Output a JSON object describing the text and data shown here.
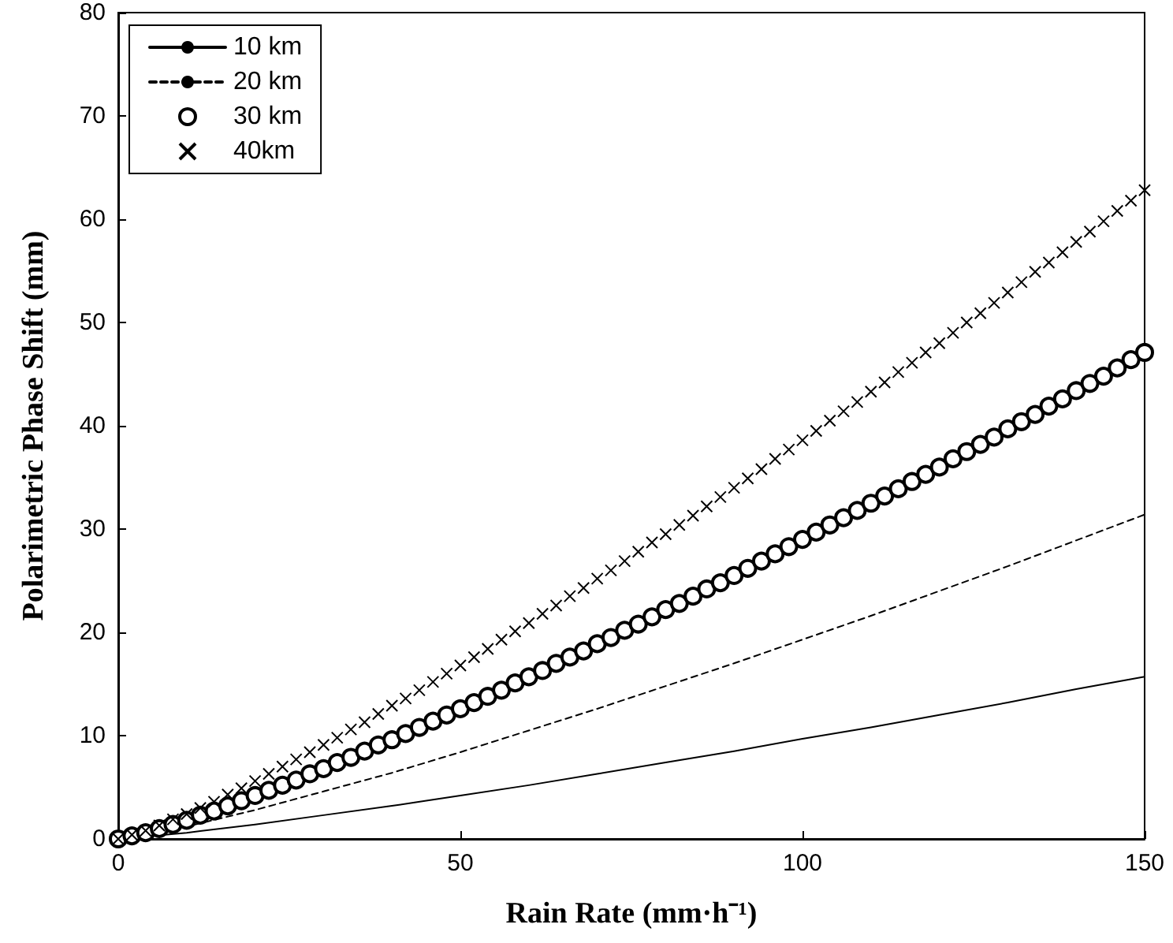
{
  "chart_data": {
    "type": "line",
    "xlabel": "Rain Rate (mm·h⁻¹)",
    "ylabel": "Polarimetric Phase Shift (mm)",
    "xlim": [
      0,
      150
    ],
    "xticks": [
      0,
      50,
      100,
      150
    ],
    "ylim": [
      0,
      80
    ],
    "yticks": [
      0,
      10,
      20,
      30,
      40,
      50,
      60,
      70,
      80
    ],
    "grid": false,
    "legend": "top left",
    "series": [
      {
        "name": "10 km",
        "line_style": "solid",
        "marker": "none",
        "color": "#000000",
        "x": [
          0,
          10,
          20,
          30,
          40,
          50,
          60,
          70,
          80,
          90,
          100,
          110,
          120,
          130,
          140,
          150
        ],
        "values": [
          0,
          0.6,
          1.4,
          2.3,
          3.2,
          4.2,
          5.2,
          6.3,
          7.4,
          8.5,
          9.7,
          10.8,
          12.0,
          13.2,
          14.5,
          15.7
        ]
      },
      {
        "name": "20 km",
        "line_style": "dashed",
        "marker": "none",
        "color": "#000000",
        "x": [
          0,
          10,
          20,
          30,
          40,
          50,
          60,
          70,
          80,
          90,
          100,
          110,
          120,
          130,
          140,
          150
        ],
        "values": [
          0,
          1.2,
          2.8,
          4.6,
          6.4,
          8.4,
          10.5,
          12.6,
          14.8,
          17.0,
          19.3,
          21.6,
          24.0,
          26.4,
          28.9,
          31.4
        ]
      },
      {
        "name": "30 km",
        "type": "scatter",
        "marker": "circle",
        "color": "#000000",
        "x": [
          0,
          2,
          4,
          6,
          8,
          10,
          12,
          14,
          16,
          18,
          20,
          22,
          24,
          26,
          28,
          30,
          32,
          34,
          36,
          38,
          40,
          42,
          44,
          46,
          48,
          50,
          52,
          54,
          56,
          58,
          60,
          62,
          64,
          66,
          68,
          70,
          72,
          74,
          76,
          78,
          80,
          82,
          84,
          86,
          88,
          90,
          92,
          94,
          96,
          98,
          100,
          102,
          104,
          106,
          108,
          110,
          112,
          114,
          116,
          118,
          120,
          122,
          124,
          126,
          128,
          130,
          132,
          134,
          136,
          138,
          140,
          142,
          144,
          146,
          148,
          150
        ],
        "values": [
          0,
          0.3,
          0.6,
          1.0,
          1.4,
          1.8,
          2.3,
          2.7,
          3.2,
          3.7,
          4.2,
          4.7,
          5.2,
          5.7,
          6.3,
          6.8,
          7.4,
          7.9,
          8.5,
          9.1,
          9.6,
          10.2,
          10.8,
          11.4,
          12.0,
          12.6,
          13.2,
          13.8,
          14.4,
          15.1,
          15.7,
          16.3,
          17.0,
          17.6,
          18.2,
          18.9,
          19.5,
          20.2,
          20.8,
          21.5,
          22.2,
          22.8,
          23.5,
          24.2,
          24.8,
          25.5,
          26.2,
          26.9,
          27.6,
          28.3,
          29.0,
          29.7,
          30.4,
          31.1,
          31.8,
          32.5,
          33.2,
          33.9,
          34.6,
          35.3,
          36.0,
          36.8,
          37.5,
          38.2,
          38.9,
          39.7,
          40.4,
          41.1,
          41.9,
          42.6,
          43.4,
          44.1,
          44.8,
          45.6,
          46.4,
          47.1
        ]
      },
      {
        "name": "40km",
        "type": "scatter",
        "marker": "cross",
        "color": "#000000",
        "x": [
          0,
          2,
          4,
          6,
          8,
          10,
          12,
          14,
          16,
          18,
          20,
          22,
          24,
          26,
          28,
          30,
          32,
          34,
          36,
          38,
          40,
          42,
          44,
          46,
          48,
          50,
          52,
          54,
          56,
          58,
          60,
          62,
          64,
          66,
          68,
          70,
          72,
          74,
          76,
          78,
          80,
          82,
          84,
          86,
          88,
          90,
          92,
          94,
          96,
          98,
          100,
          102,
          104,
          106,
          108,
          110,
          112,
          114,
          116,
          118,
          120,
          122,
          124,
          126,
          128,
          130,
          132,
          134,
          136,
          138,
          140,
          142,
          144,
          146,
          148,
          150
        ],
        "values": [
          0,
          0.4,
          0.8,
          1.3,
          1.9,
          2.4,
          3.0,
          3.6,
          4.3,
          4.9,
          5.6,
          6.3,
          7.0,
          7.7,
          8.4,
          9.1,
          9.8,
          10.6,
          11.3,
          12.1,
          12.9,
          13.6,
          14.4,
          15.2,
          16.0,
          16.8,
          17.6,
          18.4,
          19.3,
          20.1,
          20.9,
          21.8,
          22.6,
          23.5,
          24.3,
          25.2,
          26.0,
          26.9,
          27.8,
          28.7,
          29.5,
          30.4,
          31.3,
          32.2,
          33.1,
          34.0,
          34.9,
          35.8,
          36.8,
          37.7,
          38.6,
          39.5,
          40.5,
          41.4,
          42.3,
          43.3,
          44.2,
          45.2,
          46.1,
          47.1,
          48.0,
          49.0,
          50.0,
          50.9,
          51.9,
          52.9,
          53.9,
          54.9,
          55.8,
          56.8,
          57.8,
          58.8,
          59.8,
          60.8,
          61.8,
          62.8
        ]
      }
    ]
  }
}
